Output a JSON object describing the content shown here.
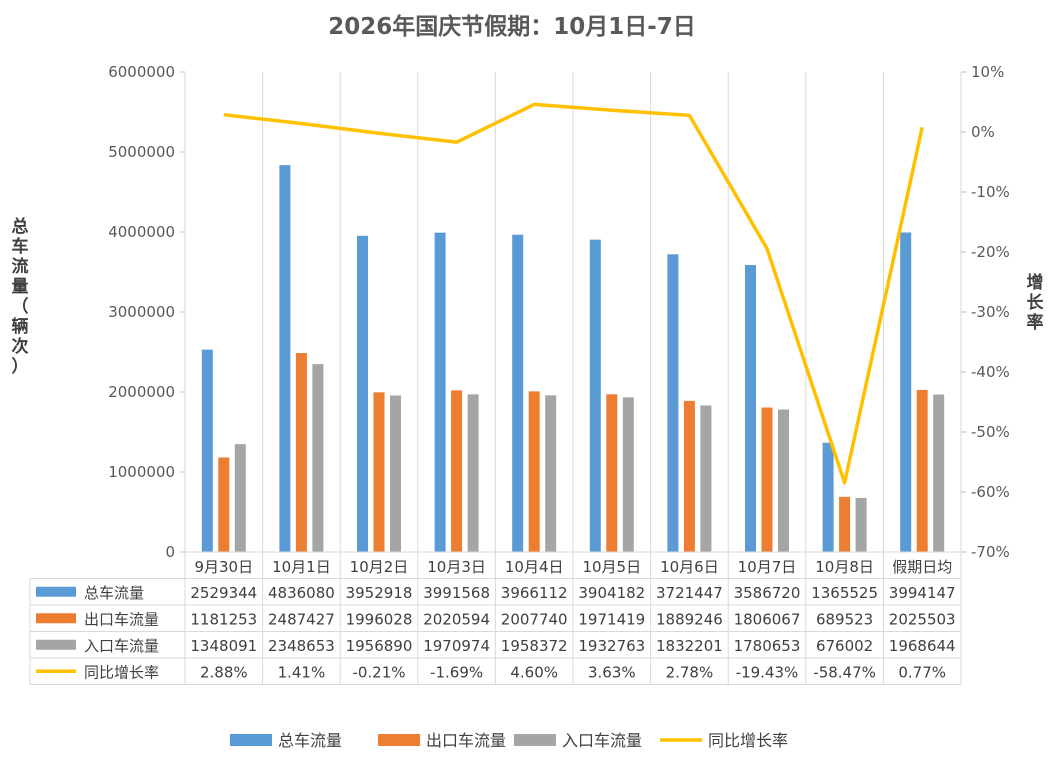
{
  "chart_data": {
    "type": "bar",
    "title": "2026年国庆节假期：10月1日-7日",
    "ylabel": "总车流量（辆次）",
    "y2label": "增长率",
    "ylim": [
      0,
      6000000
    ],
    "y2lim": [
      -70,
      10
    ],
    "y_ticks": [
      "0",
      "1000000",
      "2000000",
      "3000000",
      "4000000",
      "5000000",
      "6000000"
    ],
    "y2_ticks": [
      "10%",
      "0%",
      "-10%",
      "-20%",
      "-30%",
      "-40%",
      "-50%",
      "-60%",
      "-70%"
    ],
    "categories": [
      "9月30日",
      "10月1日",
      "10月2日",
      "10月3日",
      "10月4日",
      "10月5日",
      "10月6日",
      "10月7日",
      "10月8日",
      "假期日均"
    ],
    "series": [
      {
        "name": "总车流量",
        "type": "bar",
        "axis": "left",
        "color": "#5B9BD5",
        "values": [
          2529344,
          4836080,
          3952918,
          3991568,
          3966112,
          3904182,
          3721447,
          3586720,
          1365525,
          3994147
        ],
        "labels": [
          "2529344",
          "4836080",
          "3952918",
          "3991568",
          "3966112",
          "3904182",
          "3721447",
          "3586720",
          "1365525",
          "3994147"
        ]
      },
      {
        "name": "出口车流量",
        "type": "bar",
        "axis": "left",
        "color": "#ED7D31",
        "values": [
          1181253,
          2487427,
          1996028,
          2020594,
          2007740,
          1971419,
          1889246,
          1806067,
          689523,
          2025503
        ],
        "labels": [
          "1181253",
          "2487427",
          "1996028",
          "2020594",
          "2007740",
          "1971419",
          "1889246",
          "1806067",
          "689523",
          "2025503"
        ]
      },
      {
        "name": "入口车流量",
        "type": "bar",
        "axis": "left",
        "color": "#A5A5A5",
        "values": [
          1348091,
          2348653,
          1956890,
          1970974,
          1958372,
          1932763,
          1832201,
          1780653,
          676002,
          1968644
        ],
        "labels": [
          "1348091",
          "2348653",
          "1956890",
          "1970974",
          "1958372",
          "1932763",
          "1832201",
          "1780653",
          "676002",
          "1968644"
        ]
      },
      {
        "name": "同比增长率",
        "type": "line",
        "axis": "right",
        "color": "#FFC000",
        "values": [
          2.88,
          1.41,
          -0.21,
          -1.69,
          4.6,
          3.63,
          2.78,
          -19.43,
          -58.47,
          0.77
        ],
        "labels": [
          "2.88%",
          "1.41%",
          "-0.21%",
          "-1.69%",
          "4.60%",
          "3.63%",
          "2.78%",
          "-19.43%",
          "-58.47%",
          "0.77%"
        ]
      }
    ],
    "data_table": true,
    "legend_position": "bottom",
    "grid": "vertical"
  }
}
